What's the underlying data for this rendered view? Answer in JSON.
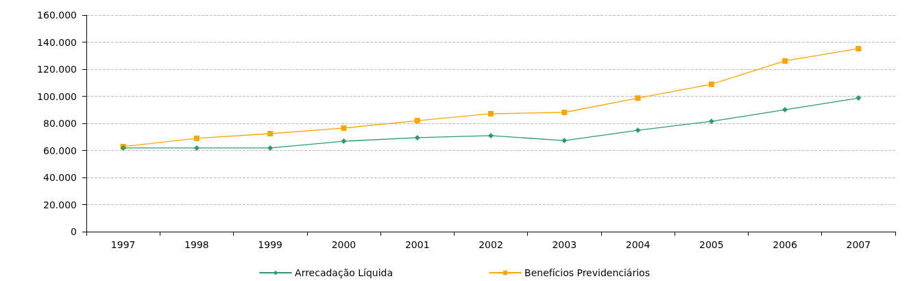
{
  "chart_data": {
    "type": "line",
    "categories": [
      "1997",
      "1998",
      "1999",
      "2000",
      "2001",
      "2002",
      "2003",
      "2004",
      "2005",
      "2006",
      "2007"
    ],
    "series": [
      {
        "name": "Arrecadação Líquida",
        "color": "#2e9a6a",
        "marker": "diamond",
        "values": [
          61800,
          61800,
          61800,
          66800,
          69400,
          70900,
          67300,
          74900,
          81500,
          90100,
          98700
        ]
      },
      {
        "name": "Benefícios Previdenciários",
        "color": "#ffa500",
        "marker": "square",
        "values": [
          62800,
          68900,
          72400,
          76500,
          82000,
          87100,
          88100,
          98700,
          108900,
          126100,
          135200
        ]
      }
    ],
    "ylim": [
      0,
      160000
    ],
    "yticks": [
      {
        "value": 0,
        "label": "0"
      },
      {
        "value": 20000,
        "label": "20.000"
      },
      {
        "value": 40000,
        "label": "40.000"
      },
      {
        "value": 60000,
        "label": "60.000"
      },
      {
        "value": 80000,
        "label": "80.000"
      },
      {
        "value": 100000,
        "label": "100.000"
      },
      {
        "value": 120000,
        "label": "120.000"
      },
      {
        "value": 140000,
        "label": "140.000"
      },
      {
        "value": 160000,
        "label": "160.000"
      }
    ],
    "grid": "y",
    "legend": "bottom",
    "line_style": "solid"
  }
}
